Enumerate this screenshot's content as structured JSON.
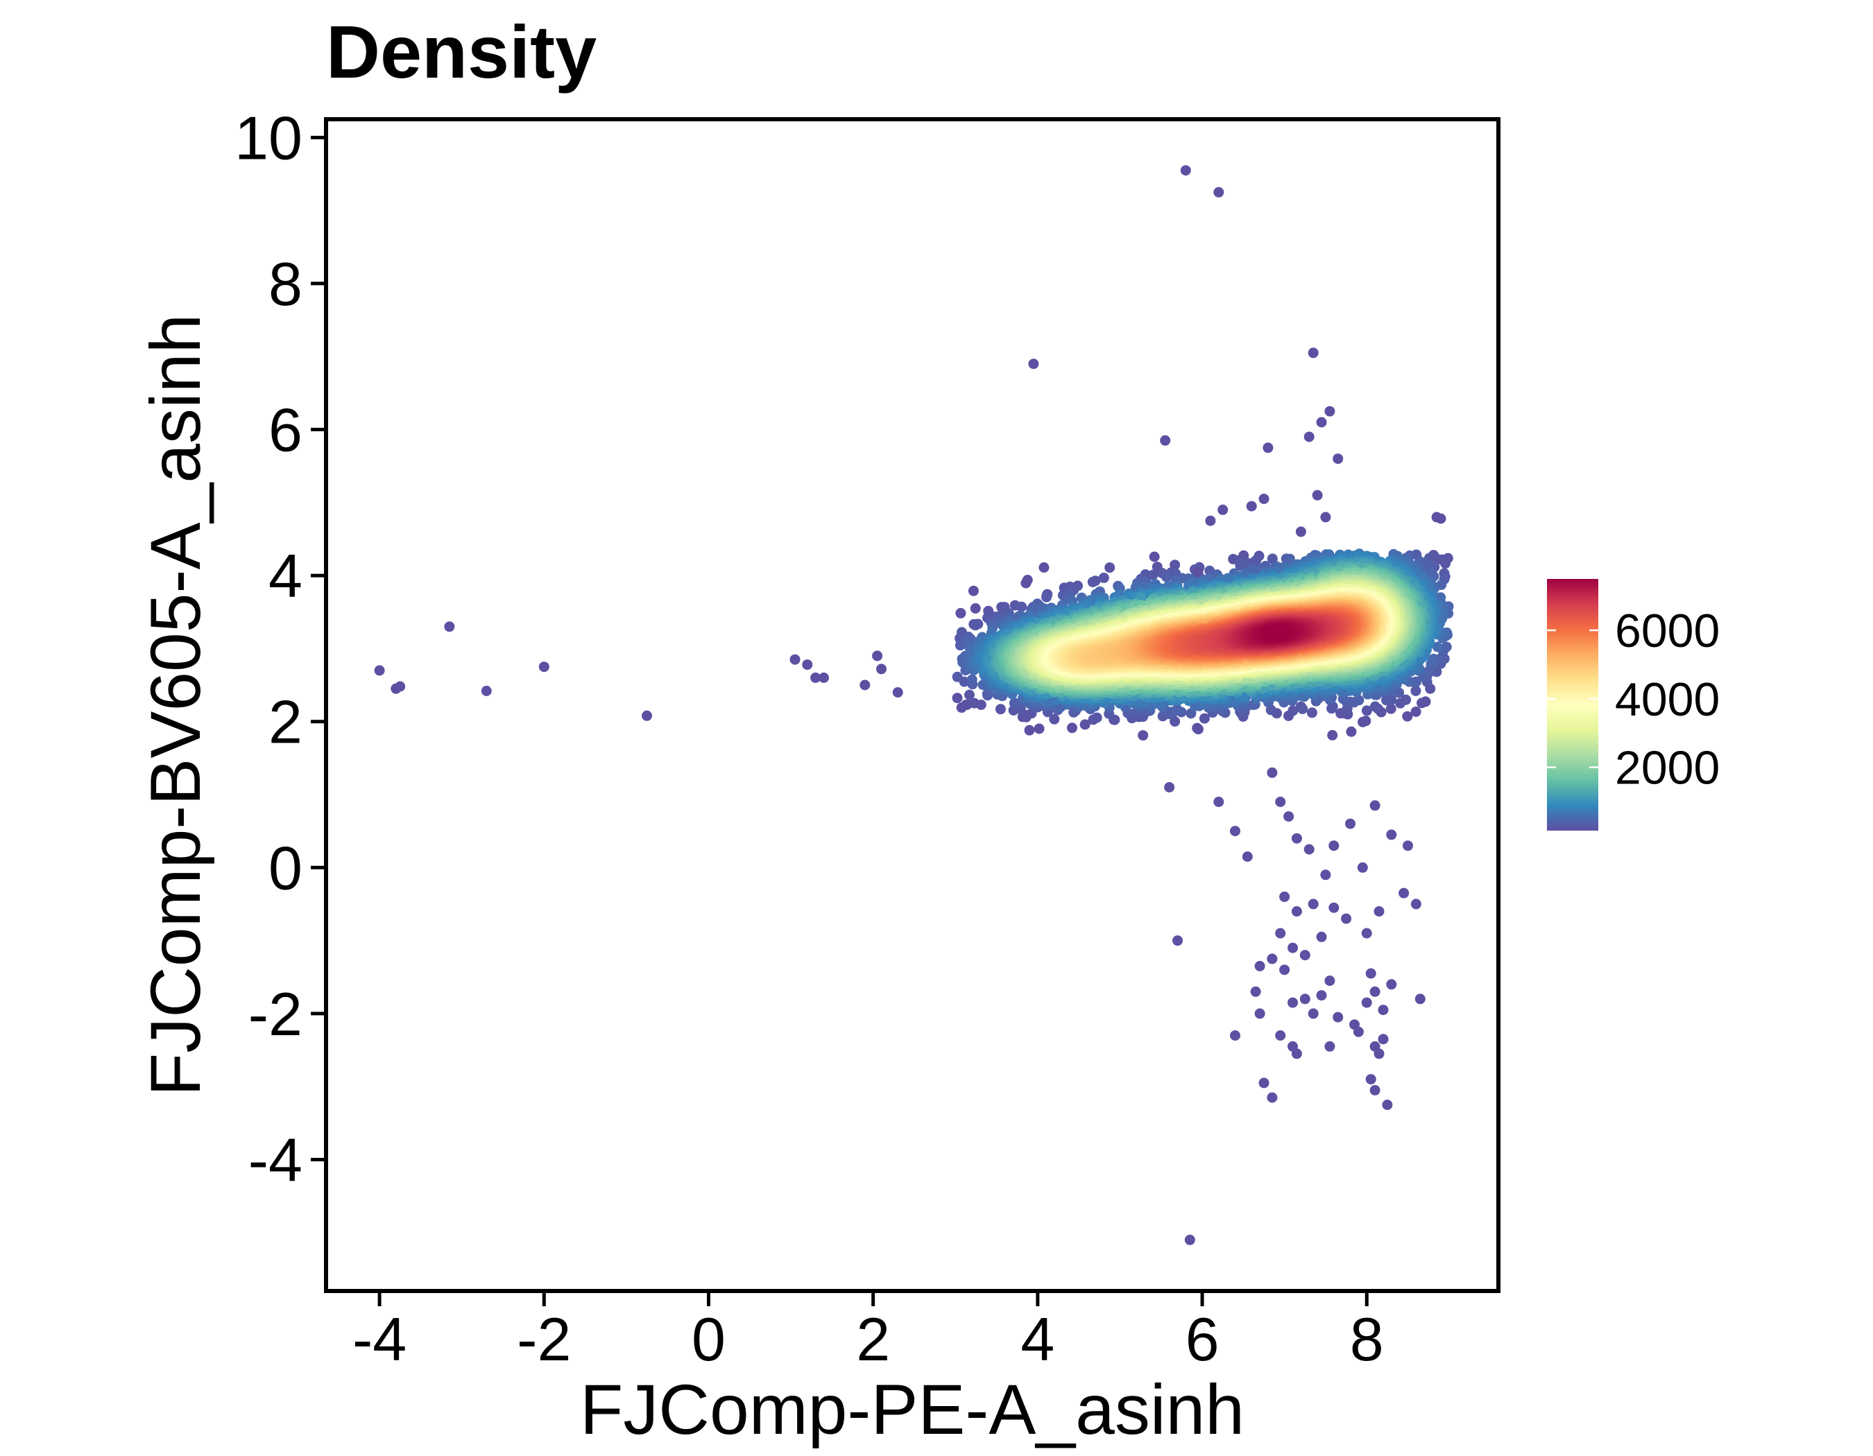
{
  "chart_data": {
    "type": "scatter",
    "title": "Density",
    "xlabel": "FJComp-PE-A_asinh",
    "ylabel": "FJComp-BV605-A_asinh",
    "xlim": [
      -4.65,
      9.6
    ],
    "ylim": [
      -5.8,
      10.25
    ],
    "xticks": [
      "-4",
      "-2",
      "0",
      "2",
      "4",
      "6",
      "8"
    ],
    "xtick_values": [
      -4,
      -2,
      0,
      2,
      4,
      6,
      8
    ],
    "yticks": [
      "-4",
      "-2",
      "0",
      "2",
      "4",
      "6",
      "8",
      "10"
    ],
    "ytick_values": [
      -4,
      -2,
      0,
      2,
      4,
      6,
      8,
      10
    ],
    "grid": false,
    "colorbar": {
      "labels": [
        "6000",
        "4000",
        "2000"
      ],
      "values": [
        6000,
        4000,
        2000
      ],
      "min": 150,
      "max": 7500,
      "palette": "Spectral",
      "colors": [
        "#5E4FA2",
        "#3288BD",
        "#66C2A5",
        "#ABDDA4",
        "#E6F598",
        "#FFFFBF",
        "#FEE08B",
        "#FDAE61",
        "#F46D43",
        "#D53E4F",
        "#9E0142"
      ]
    },
    "core_density": {
      "center": [
        7.0,
        3.25
      ],
      "peak_density": 7500,
      "extent_x": [
        3.0,
        9.0
      ],
      "extent_y": [
        1.8,
        4.3
      ]
    },
    "sparse_points": [
      [
        -4.0,
        2.7
      ],
      [
        -3.8,
        2.45
      ],
      [
        -3.75,
        2.48
      ],
      [
        -3.15,
        3.3
      ],
      [
        -2.7,
        2.42
      ],
      [
        -2.0,
        2.75
      ],
      [
        -0.75,
        2.08
      ],
      [
        1.05,
        2.85
      ],
      [
        1.2,
        2.78
      ],
      [
        1.3,
        2.6
      ],
      [
        1.4,
        2.6
      ],
      [
        1.9,
        2.5
      ],
      [
        2.05,
        2.9
      ],
      [
        2.1,
        2.72
      ],
      [
        2.3,
        2.4
      ],
      [
        3.9,
        1.88
      ],
      [
        5.6,
        1.1
      ],
      [
        5.95,
        4.05
      ],
      [
        6.1,
        4.75
      ],
      [
        6.25,
        4.9
      ],
      [
        3.95,
        6.9
      ],
      [
        5.55,
        5.85
      ],
      [
        5.8,
        9.55
      ],
      [
        6.2,
        9.25
      ],
      [
        6.8,
        5.75
      ],
      [
        6.6,
        4.95
      ],
      [
        6.75,
        5.05
      ],
      [
        7.35,
        7.05
      ],
      [
        7.3,
        5.9
      ],
      [
        7.45,
        6.1
      ],
      [
        7.55,
        6.25
      ],
      [
        7.65,
        5.6
      ],
      [
        7.4,
        5.1
      ],
      [
        7.2,
        4.6
      ],
      [
        7.5,
        4.8
      ],
      [
        8.85,
        4.8
      ],
      [
        8.9,
        4.78
      ],
      [
        6.2,
        0.9
      ],
      [
        6.4,
        0.5
      ],
      [
        6.55,
        0.15
      ],
      [
        6.85,
        1.3
      ],
      [
        6.95,
        0.9
      ],
      [
        7.05,
        0.7
      ],
      [
        7.15,
        0.4
      ],
      [
        7.3,
        0.25
      ],
      [
        7.5,
        -0.1
      ],
      [
        7.6,
        0.3
      ],
      [
        7.8,
        0.6
      ],
      [
        7.95,
        0.0
      ],
      [
        8.1,
        0.85
      ],
      [
        8.3,
        0.45
      ],
      [
        8.5,
        0.3
      ],
      [
        8.45,
        -0.35
      ],
      [
        7.0,
        -0.4
      ],
      [
        7.15,
        -0.6
      ],
      [
        6.95,
        -0.9
      ],
      [
        7.35,
        -0.5
      ],
      [
        7.45,
        -0.95
      ],
      [
        7.25,
        -1.2
      ],
      [
        7.6,
        -0.55
      ],
      [
        7.75,
        -0.7
      ],
      [
        8.0,
        -0.9
      ],
      [
        8.15,
        -0.6
      ],
      [
        8.6,
        -0.5
      ],
      [
        7.1,
        -1.1
      ],
      [
        6.85,
        -1.25
      ],
      [
        5.7,
        -1.0
      ],
      [
        6.7,
        -1.35
      ],
      [
        6.65,
        -1.7
      ],
      [
        6.7,
        -2.0
      ],
      [
        7.0,
        -1.4
      ],
      [
        7.1,
        -1.85
      ],
      [
        7.25,
        -1.8
      ],
      [
        7.35,
        -2.0
      ],
      [
        7.45,
        -1.75
      ],
      [
        7.55,
        -1.55
      ],
      [
        7.65,
        -2.05
      ],
      [
        7.85,
        -2.15
      ],
      [
        8.0,
        -1.85
      ],
      [
        8.1,
        -1.7
      ],
      [
        8.2,
        -1.95
      ],
      [
        8.05,
        -1.45
      ],
      [
        8.3,
        -1.6
      ],
      [
        8.65,
        -1.8
      ],
      [
        6.4,
        -2.3
      ],
      [
        6.95,
        -2.3
      ],
      [
        7.1,
        -2.45
      ],
      [
        7.15,
        -2.55
      ],
      [
        7.55,
        -2.45
      ],
      [
        7.9,
        -2.25
      ],
      [
        8.1,
        -2.45
      ],
      [
        8.15,
        -2.55
      ],
      [
        8.2,
        -2.35
      ],
      [
        6.75,
        -2.95
      ],
      [
        6.85,
        -3.15
      ],
      [
        8.05,
        -2.9
      ],
      [
        8.1,
        -3.05
      ],
      [
        8.25,
        -3.25
      ],
      [
        5.85,
        -5.1
      ]
    ]
  }
}
